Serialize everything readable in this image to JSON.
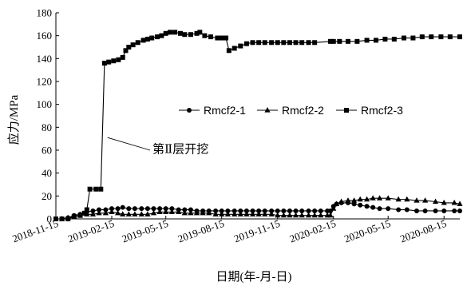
{
  "chart_data": {
    "type": "line",
    "title": "",
    "xlabel": "日期(年-月-日)",
    "ylabel": "应力/MPa",
    "ylim": [
      0,
      180
    ],
    "yticks": [
      0,
      20,
      40,
      60,
      80,
      100,
      120,
      140,
      160,
      180
    ],
    "xticks": [
      "2018-11-15",
      "2019-02-15",
      "2019-05-15",
      "2019-08-15",
      "2019-11-15",
      "2020-02-15",
      "2020-05-15",
      "2020-08-15"
    ],
    "xlim": [
      "2018-11-15",
      "2020-09-10"
    ],
    "grid": false,
    "legend_position": "right-middle",
    "annotation": {
      "text": "第Ⅱ层开挖",
      "date": "2019-02-08",
      "value": 71
    },
    "series": [
      {
        "name": "Rmcf2-1",
        "marker": "circle",
        "points": [
          [
            "2018-11-15",
            0
          ],
          [
            "2018-11-25",
            0
          ],
          [
            "2018-12-05",
            1
          ],
          [
            "2018-12-15",
            3
          ],
          [
            "2018-12-25",
            4
          ],
          [
            "2019-01-05",
            6
          ],
          [
            "2019-01-15",
            7
          ],
          [
            "2019-01-25",
            8
          ],
          [
            "2019-02-05",
            8
          ],
          [
            "2019-02-15",
            9
          ],
          [
            "2019-02-25",
            9
          ],
          [
            "2019-03-05",
            10
          ],
          [
            "2019-03-15",
            9
          ],
          [
            "2019-03-25",
            9
          ],
          [
            "2019-04-05",
            9
          ],
          [
            "2019-04-15",
            9
          ],
          [
            "2019-04-25",
            9
          ],
          [
            "2019-05-05",
            9
          ],
          [
            "2019-05-15",
            9
          ],
          [
            "2019-05-25",
            9
          ],
          [
            "2019-06-05",
            8
          ],
          [
            "2019-06-15",
            8
          ],
          [
            "2019-06-25",
            8
          ],
          [
            "2019-07-05",
            7
          ],
          [
            "2019-07-15",
            7
          ],
          [
            "2019-07-25",
            7
          ],
          [
            "2019-08-05",
            7
          ],
          [
            "2019-08-15",
            7
          ],
          [
            "2019-08-25",
            7
          ],
          [
            "2019-09-05",
            7
          ],
          [
            "2019-09-15",
            7
          ],
          [
            "2019-09-25",
            7
          ],
          [
            "2019-10-05",
            7
          ],
          [
            "2019-10-15",
            7
          ],
          [
            "2019-10-25",
            7
          ],
          [
            "2019-11-05",
            7
          ],
          [
            "2019-11-15",
            7
          ],
          [
            "2019-11-25",
            7
          ],
          [
            "2019-12-05",
            7
          ],
          [
            "2019-12-15",
            7
          ],
          [
            "2019-12-25",
            7
          ],
          [
            "2020-01-05",
            7
          ],
          [
            "2020-01-15",
            7
          ],
          [
            "2020-01-25",
            7
          ],
          [
            "2020-02-05",
            7
          ],
          [
            "2020-02-10",
            7
          ],
          [
            "2020-02-15",
            11
          ],
          [
            "2020-02-20",
            13
          ],
          [
            "2020-02-28",
            14
          ],
          [
            "2020-03-10",
            14
          ],
          [
            "2020-03-20",
            13
          ],
          [
            "2020-03-30",
            12
          ],
          [
            "2020-04-10",
            11
          ],
          [
            "2020-04-20",
            10
          ],
          [
            "2020-05-01",
            9
          ],
          [
            "2020-05-15",
            9
          ],
          [
            "2020-06-01",
            8
          ],
          [
            "2020-06-15",
            8
          ],
          [
            "2020-07-01",
            7
          ],
          [
            "2020-07-15",
            7
          ],
          [
            "2020-08-01",
            7
          ],
          [
            "2020-08-15",
            7
          ],
          [
            "2020-09-01",
            7
          ],
          [
            "2020-09-10",
            7
          ]
        ]
      },
      {
        "name": "Rmcf2-2",
        "marker": "triangle",
        "points": [
          [
            "2018-11-15",
            0
          ],
          [
            "2018-11-25",
            0
          ],
          [
            "2018-12-05",
            1
          ],
          [
            "2018-12-15",
            2
          ],
          [
            "2018-12-25",
            3
          ],
          [
            "2019-01-05",
            4
          ],
          [
            "2019-01-15",
            4
          ],
          [
            "2019-01-25",
            5
          ],
          [
            "2019-02-05",
            5
          ],
          [
            "2019-02-15",
            6
          ],
          [
            "2019-02-25",
            5
          ],
          [
            "2019-03-05",
            4
          ],
          [
            "2019-03-15",
            4
          ],
          [
            "2019-03-25",
            4
          ],
          [
            "2019-04-05",
            4
          ],
          [
            "2019-04-15",
            4
          ],
          [
            "2019-04-25",
            5
          ],
          [
            "2019-05-05",
            6
          ],
          [
            "2019-05-15",
            6
          ],
          [
            "2019-05-25",
            6
          ],
          [
            "2019-06-05",
            6
          ],
          [
            "2019-06-15",
            5
          ],
          [
            "2019-06-25",
            5
          ],
          [
            "2019-07-05",
            5
          ],
          [
            "2019-07-15",
            5
          ],
          [
            "2019-07-25",
            5
          ],
          [
            "2019-08-05",
            4
          ],
          [
            "2019-08-15",
            4
          ],
          [
            "2019-08-25",
            4
          ],
          [
            "2019-09-05",
            4
          ],
          [
            "2019-09-15",
            4
          ],
          [
            "2019-09-25",
            4
          ],
          [
            "2019-10-05",
            4
          ],
          [
            "2019-10-15",
            4
          ],
          [
            "2019-10-25",
            4
          ],
          [
            "2019-11-05",
            4
          ],
          [
            "2019-11-15",
            3
          ],
          [
            "2019-11-25",
            3
          ],
          [
            "2019-12-05",
            3
          ],
          [
            "2019-12-15",
            3
          ],
          [
            "2019-12-25",
            3
          ],
          [
            "2020-01-05",
            3
          ],
          [
            "2020-01-15",
            3
          ],
          [
            "2020-01-25",
            3
          ],
          [
            "2020-02-05",
            3
          ],
          [
            "2020-02-10",
            3
          ],
          [
            "2020-02-15",
            9
          ],
          [
            "2020-02-20",
            13
          ],
          [
            "2020-02-28",
            15
          ],
          [
            "2020-03-10",
            16
          ],
          [
            "2020-03-20",
            16
          ],
          [
            "2020-03-30",
            17
          ],
          [
            "2020-04-10",
            17
          ],
          [
            "2020-04-20",
            18
          ],
          [
            "2020-05-01",
            18
          ],
          [
            "2020-05-15",
            18
          ],
          [
            "2020-06-01",
            17
          ],
          [
            "2020-06-15",
            17
          ],
          [
            "2020-07-01",
            16
          ],
          [
            "2020-07-15",
            16
          ],
          [
            "2020-08-01",
            15
          ],
          [
            "2020-08-15",
            14
          ],
          [
            "2020-09-01",
            14
          ],
          [
            "2020-09-10",
            13
          ]
        ]
      },
      {
        "name": "Rmcf2-3",
        "marker": "square",
        "points": [
          [
            "2018-11-15",
            0
          ],
          [
            "2018-11-25",
            0
          ],
          [
            "2018-12-05",
            0
          ],
          [
            "2018-12-15",
            2
          ],
          [
            "2018-12-25",
            3
          ],
          [
            "2019-01-01",
            5
          ],
          [
            "2019-01-05",
            8
          ],
          [
            "2019-01-10",
            26
          ],
          [
            "2019-01-20",
            26
          ],
          [
            "2019-01-28",
            26
          ],
          [
            "2019-02-03",
            136
          ],
          [
            "2019-02-10",
            137
          ],
          [
            "2019-02-18",
            138
          ],
          [
            "2019-02-26",
            139
          ],
          [
            "2019-03-05",
            141
          ],
          [
            "2019-03-10",
            147
          ],
          [
            "2019-03-15",
            150
          ],
          [
            "2019-03-22",
            152
          ],
          [
            "2019-03-30",
            154
          ],
          [
            "2019-04-08",
            156
          ],
          [
            "2019-04-15",
            157
          ],
          [
            "2019-04-22",
            158
          ],
          [
            "2019-05-01",
            159
          ],
          [
            "2019-05-08",
            160
          ],
          [
            "2019-05-15",
            162
          ],
          [
            "2019-05-22",
            163
          ],
          [
            "2019-05-30",
            163
          ],
          [
            "2019-06-08",
            162
          ],
          [
            "2019-06-15",
            161
          ],
          [
            "2019-06-25",
            161
          ],
          [
            "2019-07-05",
            162
          ],
          [
            "2019-07-10",
            163
          ],
          [
            "2019-07-18",
            160
          ],
          [
            "2019-07-28",
            159
          ],
          [
            "2019-08-08",
            158
          ],
          [
            "2019-08-15",
            158
          ],
          [
            "2019-08-22",
            158
          ],
          [
            "2019-08-27",
            147
          ],
          [
            "2019-09-05",
            149
          ],
          [
            "2019-09-15",
            151
          ],
          [
            "2019-09-25",
            153
          ],
          [
            "2019-10-05",
            154
          ],
          [
            "2019-10-15",
            154
          ],
          [
            "2019-10-25",
            154
          ],
          [
            "2019-11-05",
            154
          ],
          [
            "2019-11-15",
            154
          ],
          [
            "2019-11-25",
            154
          ],
          [
            "2019-12-05",
            154
          ],
          [
            "2019-12-15",
            154
          ],
          [
            "2019-12-25",
            154
          ],
          [
            "2020-01-05",
            154
          ],
          [
            "2020-01-15",
            154
          ],
          [
            "2020-02-10",
            155
          ],
          [
            "2020-02-15",
            155
          ],
          [
            "2020-02-25",
            155
          ],
          [
            "2020-03-10",
            155
          ],
          [
            "2020-03-25",
            155
          ],
          [
            "2020-04-10",
            156
          ],
          [
            "2020-04-25",
            156
          ],
          [
            "2020-05-10",
            157
          ],
          [
            "2020-05-25",
            157
          ],
          [
            "2020-06-10",
            158
          ],
          [
            "2020-06-25",
            158
          ],
          [
            "2020-07-10",
            159
          ],
          [
            "2020-07-25",
            159
          ],
          [
            "2020-08-10",
            159
          ],
          [
            "2020-08-25",
            159
          ],
          [
            "2020-09-10",
            159
          ]
        ]
      }
    ]
  }
}
